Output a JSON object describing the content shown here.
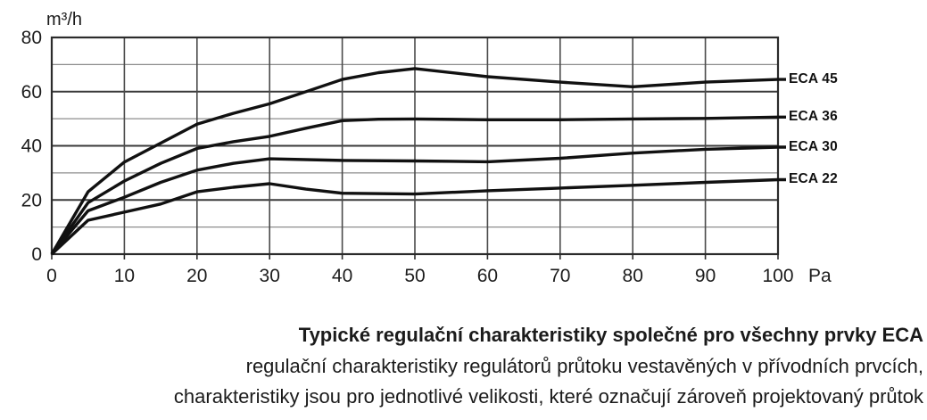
{
  "colors": {
    "curve": "#111111",
    "grid_major": "#3a3a3a",
    "grid_minor": "#8d8d8d",
    "grid_vertical": "#4a4a4a",
    "box": "#2b2b2b",
    "text": "#1d1d1d"
  },
  "chart_data": {
    "type": "line",
    "title": "Typické regulační charakteristiky společné pro všechny prvky ECA",
    "subtitle_lines": [
      "regulační charakteristiky regulátorů průtoku vestavěných v přívodních prvcích,",
      "charakteristiky jsou pro jednotlivé velikosti, které označují zároveň projektovaný průtok"
    ],
    "ylabel_unit": "m³/h",
    "xlabel_unit": "Pa",
    "xlim": [
      0,
      100
    ],
    "ylim": [
      0,
      80
    ],
    "x_ticks": [
      0,
      10,
      20,
      30,
      40,
      50,
      60,
      70,
      80,
      90,
      100
    ],
    "y_ticks": [
      0,
      20,
      40,
      60,
      80
    ],
    "y_minor_gridlines": [
      10,
      30,
      50,
      70
    ],
    "grid": true,
    "legend_position": "labels-at-right-edge",
    "series": [
      {
        "name": "ECA 45",
        "points": [
          [
            0,
            0
          ],
          [
            5,
            23
          ],
          [
            10,
            34
          ],
          [
            15,
            41
          ],
          [
            20,
            48
          ],
          [
            25,
            52
          ],
          [
            30,
            55.5
          ],
          [
            35,
            60
          ],
          [
            40,
            64.5
          ],
          [
            45,
            67
          ],
          [
            50,
            68.5
          ],
          [
            60,
            65.5
          ],
          [
            70,
            63.5
          ],
          [
            80,
            61.8
          ],
          [
            90,
            63.5
          ],
          [
            100,
            64.5
          ]
        ]
      },
      {
        "name": "ECA 36",
        "points": [
          [
            0,
            0
          ],
          [
            5,
            19
          ],
          [
            10,
            27
          ],
          [
            15,
            33.5
          ],
          [
            20,
            39
          ],
          [
            25,
            41.5
          ],
          [
            30,
            43.5
          ],
          [
            35,
            46.5
          ],
          [
            40,
            49.3
          ],
          [
            45,
            49.8
          ],
          [
            50,
            49.9
          ],
          [
            60,
            49.6
          ],
          [
            70,
            49.6
          ],
          [
            80,
            49.9
          ],
          [
            90,
            50.1
          ],
          [
            100,
            50.6
          ]
        ]
      },
      {
        "name": "ECA 30",
        "points": [
          [
            0,
            0
          ],
          [
            5,
            16
          ],
          [
            10,
            21
          ],
          [
            15,
            26.5
          ],
          [
            20,
            31
          ],
          [
            25,
            33.5
          ],
          [
            30,
            35.2
          ],
          [
            40,
            34.6
          ],
          [
            50,
            34.4
          ],
          [
            60,
            34.1
          ],
          [
            70,
            35.4
          ],
          [
            80,
            37.3
          ],
          [
            90,
            38.7
          ],
          [
            100,
            39.5
          ]
        ]
      },
      {
        "name": "ECA 22",
        "points": [
          [
            0,
            0
          ],
          [
            5,
            12.5
          ],
          [
            10,
            15.5
          ],
          [
            15,
            18.5
          ],
          [
            20,
            23
          ],
          [
            25,
            24.7
          ],
          [
            30,
            26
          ],
          [
            35,
            24
          ],
          [
            40,
            22.5
          ],
          [
            50,
            22.2
          ],
          [
            60,
            23.4
          ],
          [
            70,
            24.4
          ],
          [
            80,
            25.4
          ],
          [
            90,
            26.5
          ],
          [
            100,
            27.5
          ]
        ]
      }
    ]
  }
}
